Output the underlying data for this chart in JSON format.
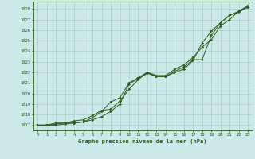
{
  "title": "Graphe pression niveau de la mer (hPa)",
  "bg_color": "#cce8e8",
  "grid_color": "#aacccc",
  "line_color": "#2d5a1b",
  "marker_color": "#2d5a1b",
  "xlim": [
    -0.5,
    23.5
  ],
  "ylim": [
    1016.5,
    1028.7
  ],
  "yticks": [
    1017,
    1018,
    1019,
    1020,
    1021,
    1022,
    1023,
    1024,
    1025,
    1026,
    1027,
    1028
  ],
  "xticks": [
    0,
    1,
    2,
    3,
    4,
    5,
    6,
    7,
    8,
    9,
    10,
    11,
    12,
    13,
    14,
    15,
    16,
    17,
    18,
    19,
    20,
    21,
    22,
    23
  ],
  "series1": [
    1017.0,
    1017.0,
    1017.1,
    1017.2,
    1017.2,
    1017.3,
    1017.5,
    1017.8,
    1018.3,
    1019.0,
    1020.9,
    1021.4,
    1021.9,
    1021.6,
    1021.6,
    1022.0,
    1022.3,
    1023.1,
    1024.8,
    1025.9,
    1026.7,
    1027.4,
    1027.7,
    1028.2
  ],
  "series2": [
    1017.0,
    1017.0,
    1017.0,
    1017.1,
    1017.2,
    1017.3,
    1017.7,
    1018.3,
    1019.2,
    1019.6,
    1021.0,
    1021.5,
    1022.0,
    1021.6,
    1021.6,
    1022.1,
    1022.5,
    1023.2,
    1023.2,
    1025.5,
    1026.7,
    1027.4,
    1027.8,
    1028.3
  ],
  "series3": [
    1017.0,
    1017.0,
    1017.2,
    1017.2,
    1017.4,
    1017.5,
    1017.9,
    1018.4,
    1018.5,
    1019.3,
    1020.4,
    1021.3,
    1022.0,
    1021.7,
    1021.7,
    1022.3,
    1022.7,
    1023.4,
    1024.4,
    1025.1,
    1026.4,
    1027.0,
    1027.8,
    1028.2
  ]
}
